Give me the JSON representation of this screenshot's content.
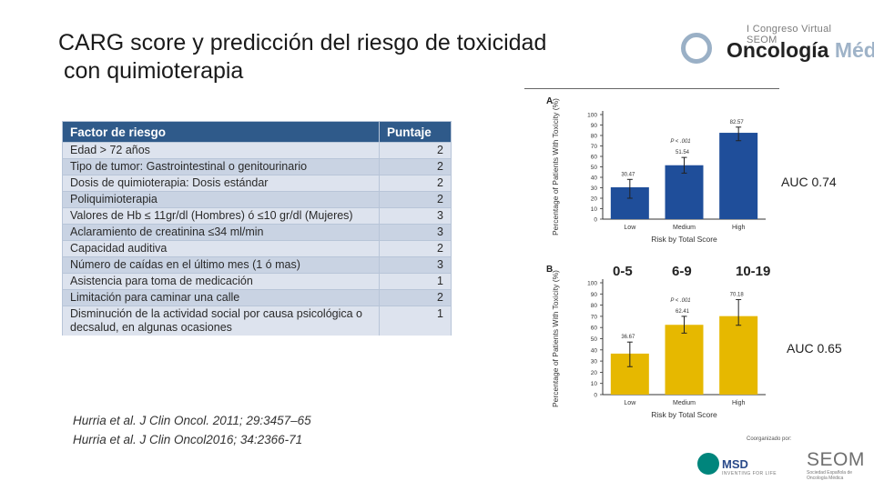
{
  "slide": {
    "title_line1": "CARG score y predicción del riesgo de toxicidad",
    "title_line2": "con quimioterapia"
  },
  "logo": {
    "subtitle": "I Congreso Virtual SEOM",
    "name_part1": "ncología",
    "name_part2": "Médica",
    "letter": "O"
  },
  "table": {
    "header": {
      "factor": "Factor de riesgo",
      "score": "Puntaje"
    },
    "rows": [
      {
        "factor": "Edad > 72 años",
        "score": "2"
      },
      {
        "factor": "Tipo de tumor: Gastrointestinal  o genitourinario",
        "score": "2"
      },
      {
        "factor": "Dosis de quimioterapia: Dosis estándar",
        "score": "2"
      },
      {
        "factor": "Poliquimioterapia",
        "score": "2"
      },
      {
        "factor": "Valores de Hb  ≤ 11gr/dl (Hombres) ó ≤10 gr/dl (Mujeres)",
        "score": "3"
      },
      {
        "factor": "Aclaramiento de creatinina  ≤34 ml/min",
        "score": "3"
      },
      {
        "factor": "Capacidad auditiva",
        "score": "2"
      },
      {
        "factor": "Número de caídas en el último mes (1 ó mas)",
        "score": "3"
      },
      {
        "factor": "Asistencia para toma de medicación",
        "score": "1"
      },
      {
        "factor": "Limitación para caminar una calle",
        "score": "2"
      },
      {
        "factor": "Disminución de la actividad social por causa psicológica o decsalud, en algunas ocasiones",
        "score": "1"
      }
    ]
  },
  "references": {
    "ref1": "Hurria et al. J Clin Oncol. 2011; 29:3457–65",
    "ref2": "Hurria et al. J Clin Oncol2016; 34:2366-71"
  },
  "annotations": {
    "auc_a": "AUC 0.74",
    "auc_b": "AUC 0.65",
    "range_low": "0-5",
    "range_mid": "6-9",
    "range_high": "10-19"
  },
  "chart_data": [
    {
      "type": "bar",
      "panel": "A",
      "categories": [
        "Low",
        "Medium",
        "High"
      ],
      "values": [
        30.47,
        51.54,
        82.57
      ],
      "value_labels": [
        "30.47",
        "51.54",
        "82.57"
      ],
      "error_low": [
        20,
        44,
        75
      ],
      "error_high": [
        38,
        59,
        88
      ],
      "p_label": "P < .001",
      "xlabel": "Risk by Total Score",
      "ylabel": "Percentage of Patients With Toxicity (%)",
      "ylim": [
        0,
        100
      ],
      "yticks": [
        "0",
        "10",
        "20",
        "30",
        "40",
        "50",
        "60",
        "70",
        "80",
        "90",
        "100"
      ],
      "color": "#1f4e9a"
    },
    {
      "type": "bar",
      "panel": "B",
      "categories": [
        "Low",
        "Medium",
        "High"
      ],
      "values": [
        36.67,
        62.41,
        70.18
      ],
      "value_labels": [
        "36.67",
        "62.41",
        "70.18"
      ],
      "error_low": [
        25,
        55,
        62
      ],
      "error_high": [
        47,
        70,
        85
      ],
      "p_label": "P < .001",
      "xlabel": "Risk by Total Score",
      "ylabel": "Percentage of Patients With Toxicity (%)",
      "ylim": [
        0,
        100
      ],
      "yticks": [
        "0",
        "10",
        "20",
        "30",
        "40",
        "50",
        "60",
        "70",
        "80",
        "90",
        "100"
      ],
      "color": "#e6b800"
    }
  ],
  "footer": {
    "organized_by": "Coorganizado por:",
    "msd": "MSD",
    "msd_tagline": "INVENTING FOR LIFE",
    "seom": "SEOM",
    "seom_sub": "Sociedad Española de Oncología Médica"
  }
}
